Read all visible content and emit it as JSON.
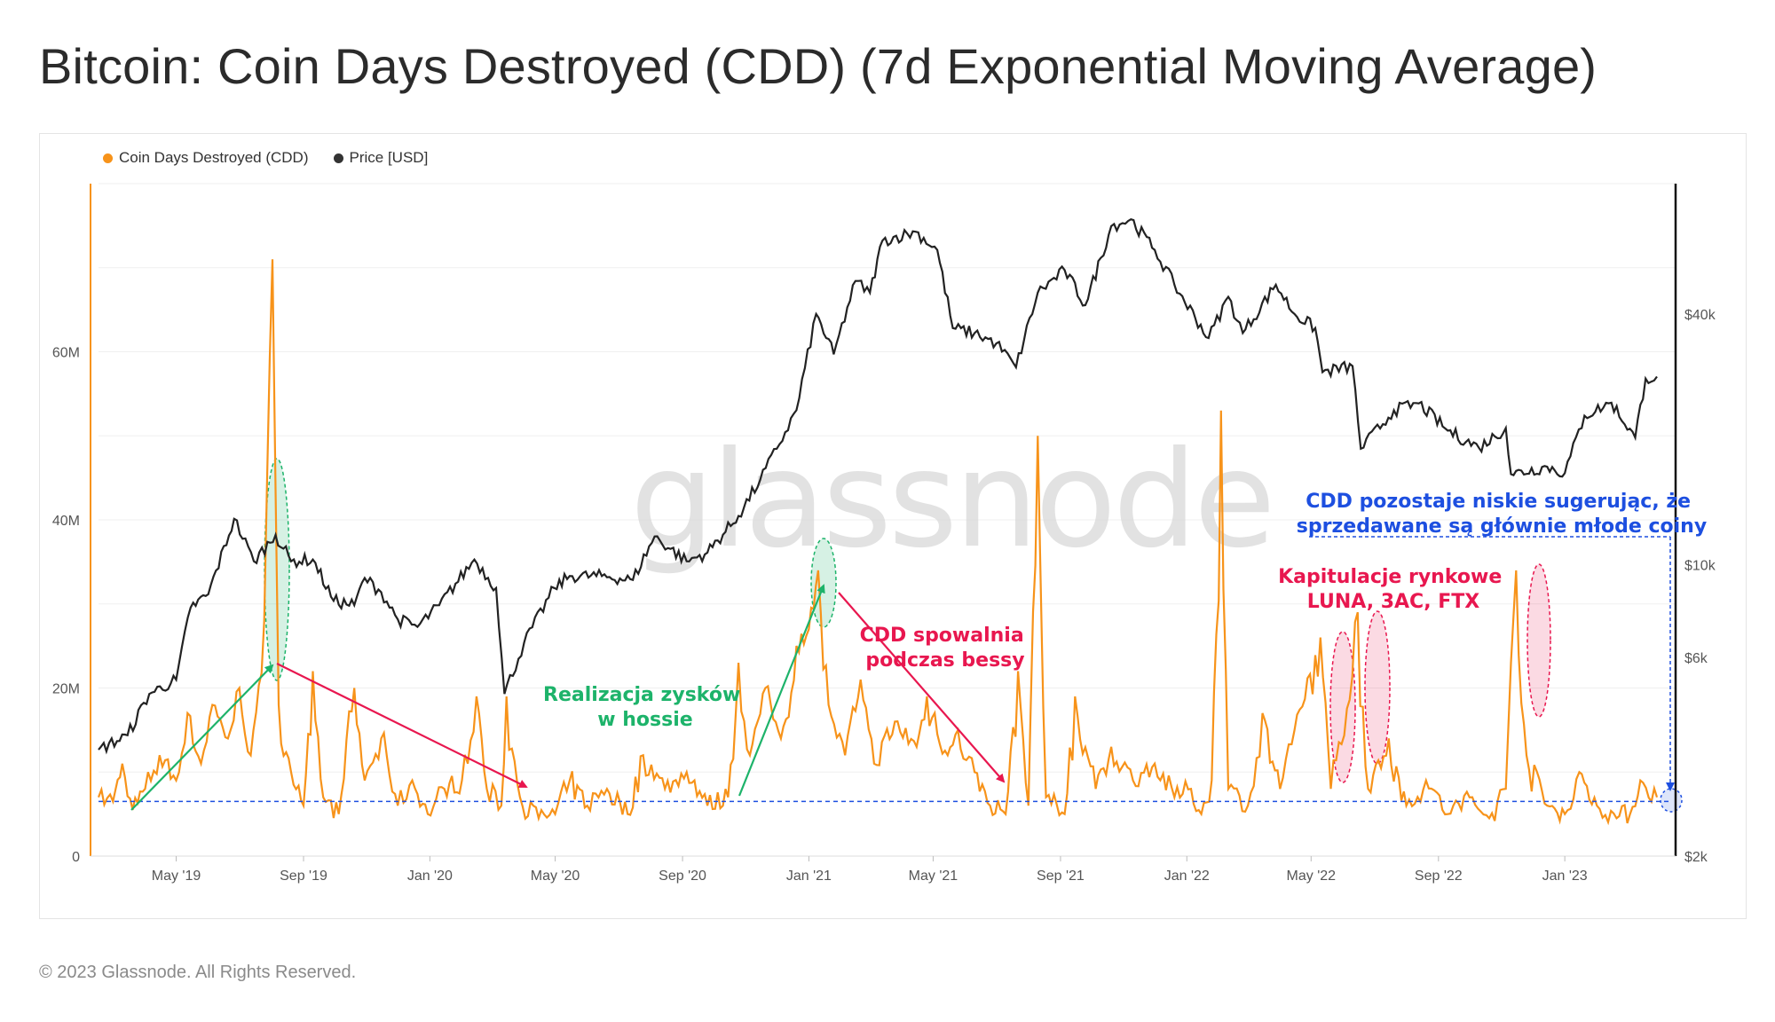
{
  "title": "Bitcoin: Coin Days Destroyed (CDD) (7d Exponential Moving Average)",
  "footer": "© 2023 Glassnode. All Rights Reserved.",
  "watermark": "glassnode",
  "colors": {
    "cdd": "#f7931a",
    "price": "#222222",
    "green": "#1db36a",
    "red": "#e8174f",
    "blue": "#1d4fe0"
  },
  "legend": [
    {
      "label": "Coin Days Destroyed (CDD)",
      "color": "#f7931a"
    },
    {
      "label": "Price [USD]",
      "color": "#333333"
    }
  ],
  "chart_data": {
    "type": "line",
    "x_range": [
      "2019-02-15",
      "2023-03-31"
    ],
    "x_ticks": [
      "May '19",
      "Sep '19",
      "Jan '20",
      "May '20",
      "Sep '20",
      "Jan '21",
      "May '21",
      "Sep '21",
      "Jan '22",
      "May '22",
      "Sep '22",
      "Jan '23"
    ],
    "y_left": {
      "ticks": [
        "0",
        "20M",
        "40M",
        "60M"
      ],
      "range": [
        0,
        80000000
      ]
    },
    "y_right": {
      "scale": "log",
      "ticks": [
        "$2k",
        "$6k",
        "$10k",
        "$40k"
      ],
      "range": [
        2000,
        100000
      ]
    },
    "baseline_cdd": 6500000,
    "series": [
      {
        "name": "Coin Days Destroyed (CDD)",
        "axis": "left",
        "points": [
          [
            "2019-02-15",
            7000000
          ],
          [
            "2019-03-01",
            6500000
          ],
          [
            "2019-03-10",
            11000000
          ],
          [
            "2019-03-20",
            5500000
          ],
          [
            "2019-04-01",
            8000000
          ],
          [
            "2019-04-15",
            12000000
          ],
          [
            "2019-05-01",
            9000000
          ],
          [
            "2019-05-12",
            17000000
          ],
          [
            "2019-05-25",
            11000000
          ],
          [
            "2019-06-05",
            18000000
          ],
          [
            "2019-06-20",
            14000000
          ],
          [
            "2019-07-01",
            20000000
          ],
          [
            "2019-07-12",
            12000000
          ],
          [
            "2019-07-25",
            28000000
          ],
          [
            "2019-08-02",
            71000000
          ],
          [
            "2019-08-08",
            18000000
          ],
          [
            "2019-08-20",
            10000000
          ],
          [
            "2019-09-01",
            6000000
          ],
          [
            "2019-09-10",
            22000000
          ],
          [
            "2019-09-20",
            7000000
          ],
          [
            "2019-10-05",
            5000000
          ],
          [
            "2019-10-20",
            20000000
          ],
          [
            "2019-10-30",
            9000000
          ],
          [
            "2019-11-15",
            14000000
          ],
          [
            "2019-12-01",
            6000000
          ],
          [
            "2019-12-15",
            9000000
          ],
          [
            "2019-12-30",
            5000000
          ],
          [
            "2020-01-15",
            8000000
          ],
          [
            "2020-02-01",
            9000000
          ],
          [
            "2020-02-15",
            19000000
          ],
          [
            "2020-02-25",
            8000000
          ],
          [
            "2020-03-10",
            6000000
          ],
          [
            "2020-03-15",
            19000000
          ],
          [
            "2020-03-28",
            7000000
          ],
          [
            "2020-04-15",
            4500000
          ],
          [
            "2020-05-01",
            5000000
          ],
          [
            "2020-05-15",
            9000000
          ],
          [
            "2020-06-01",
            6000000
          ],
          [
            "2020-06-20",
            8000000
          ],
          [
            "2020-07-10",
            5000000
          ],
          [
            "2020-07-25",
            12000000
          ],
          [
            "2020-08-15",
            8000000
          ],
          [
            "2020-09-05",
            10000000
          ],
          [
            "2020-09-25",
            6000000
          ],
          [
            "2020-10-15",
            7000000
          ],
          [
            "2020-10-25",
            23000000
          ],
          [
            "2020-11-05",
            12000000
          ],
          [
            "2020-11-20",
            20000000
          ],
          [
            "2020-12-05",
            14000000
          ],
          [
            "2020-12-20",
            25000000
          ],
          [
            "2021-01-01",
            27000000
          ],
          [
            "2021-01-10",
            34000000
          ],
          [
            "2021-01-20",
            18000000
          ],
          [
            "2021-02-05",
            12000000
          ],
          [
            "2021-02-20",
            21000000
          ],
          [
            "2021-03-05",
            11000000
          ],
          [
            "2021-03-25",
            16000000
          ],
          [
            "2021-04-15",
            13000000
          ],
          [
            "2021-04-25",
            19000000
          ],
          [
            "2021-05-15",
            12000000
          ],
          [
            "2021-05-25",
            15000000
          ],
          [
            "2021-06-10",
            10000000
          ],
          [
            "2021-06-25",
            6000000
          ],
          [
            "2021-07-10",
            5000000
          ],
          [
            "2021-07-22",
            22000000
          ],
          [
            "2021-08-01",
            6000000
          ],
          [
            "2021-08-10",
            50000000
          ],
          [
            "2021-08-18",
            7000000
          ],
          [
            "2021-09-05",
            5000000
          ],
          [
            "2021-09-15",
            19000000
          ],
          [
            "2021-10-05",
            8000000
          ],
          [
            "2021-10-20",
            13000000
          ],
          [
            "2021-11-10",
            9000000
          ],
          [
            "2021-12-01",
            11000000
          ],
          [
            "2021-12-20",
            7000000
          ],
          [
            "2022-01-05",
            8000000
          ],
          [
            "2022-01-15",
            5000000
          ],
          [
            "2022-01-25",
            9000000
          ],
          [
            "2022-02-03",
            53000000
          ],
          [
            "2022-02-10",
            8000000
          ],
          [
            "2022-03-01",
            6000000
          ],
          [
            "2022-03-15",
            17000000
          ],
          [
            "2022-04-01",
            8000000
          ],
          [
            "2022-04-15",
            15000000
          ],
          [
            "2022-05-10",
            26000000
          ],
          [
            "2022-05-20",
            8000000
          ],
          [
            "2022-06-15",
            29000000
          ],
          [
            "2022-06-25",
            8000000
          ],
          [
            "2022-07-15",
            14000000
          ],
          [
            "2022-08-01",
            6000000
          ],
          [
            "2022-08-20",
            9000000
          ],
          [
            "2022-09-10",
            5000000
          ],
          [
            "2022-10-01",
            7000000
          ],
          [
            "2022-10-20",
            4500000
          ],
          [
            "2022-11-05",
            8000000
          ],
          [
            "2022-11-10",
            23000000
          ],
          [
            "2022-11-15",
            34000000
          ],
          [
            "2022-11-25",
            12000000
          ],
          [
            "2022-12-15",
            6000000
          ],
          [
            "2023-01-01",
            5000000
          ],
          [
            "2023-01-15",
            10000000
          ],
          [
            "2023-02-01",
            6000000
          ],
          [
            "2023-02-20",
            4500000
          ],
          [
            "2023-03-05",
            5000000
          ],
          [
            "2023-03-15",
            9000000
          ],
          [
            "2023-03-31",
            7000000
          ]
        ]
      },
      {
        "name": "Price [USD]",
        "axis": "right",
        "points": [
          [
            "2019-02-15",
            3600
          ],
          [
            "2019-03-15",
            3900
          ],
          [
            "2019-04-05",
            4900
          ],
          [
            "2019-05-01",
            5300
          ],
          [
            "2019-05-15",
            7900
          ],
          [
            "2019-06-01",
            8500
          ],
          [
            "2019-06-26",
            12900
          ],
          [
            "2019-07-15",
            10200
          ],
          [
            "2019-08-05",
            11800
          ],
          [
            "2019-08-20",
            10200
          ],
          [
            "2019-09-10",
            10300
          ],
          [
            "2019-09-30",
            8200
          ],
          [
            "2019-10-20",
            8000
          ],
          [
            "2019-10-30",
            9300
          ],
          [
            "2019-11-15",
            8600
          ],
          [
            "2019-12-01",
            7400
          ],
          [
            "2019-12-20",
            7100
          ],
          [
            "2020-01-10",
            8000
          ],
          [
            "2020-02-13",
            10300
          ],
          [
            "2020-03-05",
            8800
          ],
          [
            "2020-03-13",
            4900
          ],
          [
            "2020-04-01",
            6500
          ],
          [
            "2020-04-30",
            8800
          ],
          [
            "2020-05-15",
            9400
          ],
          [
            "2020-06-15",
            9400
          ],
          [
            "2020-07-15",
            9200
          ],
          [
            "2020-08-05",
            11700
          ],
          [
            "2020-09-05",
            10200
          ],
          [
            "2020-09-25",
            10700
          ],
          [
            "2020-10-25",
            13100
          ],
          [
            "2020-11-15",
            16000
          ],
          [
            "2020-12-01",
            19000
          ],
          [
            "2020-12-20",
            23500
          ],
          [
            "2021-01-08",
            40000
          ],
          [
            "2021-01-25",
            32000
          ],
          [
            "2021-02-15",
            48000
          ],
          [
            "2021-03-01",
            45000
          ],
          [
            "2021-03-13",
            60000
          ],
          [
            "2021-04-14",
            63000
          ],
          [
            "2021-05-05",
            57000
          ],
          [
            "2021-05-20",
            37000
          ],
          [
            "2021-06-10",
            36000
          ],
          [
            "2021-07-01",
            34000
          ],
          [
            "2021-07-20",
            29800
          ],
          [
            "2021-08-10",
            45000
          ],
          [
            "2021-09-05",
            51000
          ],
          [
            "2021-09-25",
            42000
          ],
          [
            "2021-10-20",
            65000
          ],
          [
            "2021-11-08",
            67500
          ],
          [
            "2021-12-01",
            57000
          ],
          [
            "2021-12-20",
            47000
          ],
          [
            "2022-01-22",
            35000
          ],
          [
            "2022-02-10",
            44000
          ],
          [
            "2022-02-24",
            36000
          ],
          [
            "2022-03-28",
            47000
          ],
          [
            "2022-04-15",
            40000
          ],
          [
            "2022-05-05",
            37000
          ],
          [
            "2022-05-12",
            29000
          ],
          [
            "2022-06-10",
            30000
          ],
          [
            "2022-06-18",
            19000
          ],
          [
            "2022-07-20",
            23500
          ],
          [
            "2022-08-13",
            24400
          ],
          [
            "2022-09-10",
            21000
          ],
          [
            "2022-10-10",
            19100
          ],
          [
            "2022-11-05",
            21300
          ],
          [
            "2022-11-10",
            16500
          ],
          [
            "2022-12-15",
            17200
          ],
          [
            "2023-01-01",
            16600
          ],
          [
            "2023-01-20",
            22800
          ],
          [
            "2023-02-15",
            24500
          ],
          [
            "2023-03-10",
            20200
          ],
          [
            "2023-03-20",
            28000
          ],
          [
            "2023-03-31",
            28300
          ]
        ]
      }
    ],
    "annotations": [
      {
        "text": "Realizacja zysków\nw hossie",
        "color": "green"
      },
      {
        "text": "CDD spowalnia\npodczas bessy",
        "color": "red"
      },
      {
        "text": "Kapitulacje rynkowe\nLUNA, 3AC, FTX",
        "color": "red"
      },
      {
        "text": "CDD pozostaje niskie sugerując, że\nsprzedawane są głównie młode coiny",
        "color": "blue"
      }
    ]
  }
}
